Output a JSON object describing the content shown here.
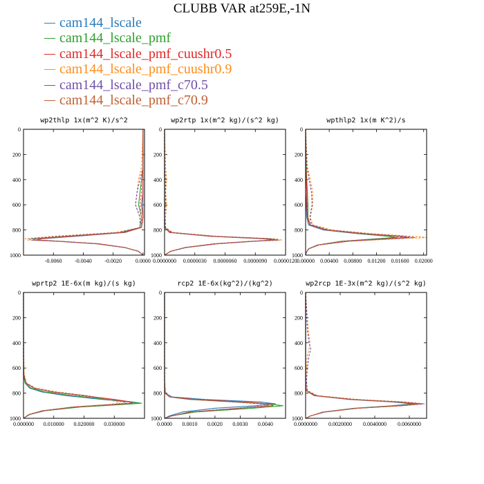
{
  "title": "CLUBB VAR at259E,-1N",
  "legend": [
    {
      "label": "cam144_lscale",
      "color": "#2a7ab8"
    },
    {
      "label": "cam144_lscale_pmf",
      "color": "#2ca02c"
    },
    {
      "label": "cam144_lscale_pmf_cuushr0.5",
      "color": "#e32626"
    },
    {
      "label": "cam144_lscale_pmf_cuushr0.9",
      "color": "#ff8c1a"
    },
    {
      "label": "cam144_lscale_pmf_c70.5",
      "color": "#7050a8"
    },
    {
      "label": "cam144_lscale_pmf_c70.9",
      "color": "#bf5f33"
    }
  ],
  "chart_data": [
    {
      "type": "line",
      "title": "wp2thlp  1x(m^2 K)/s^2",
      "xlim": [
        -0.008,
        0.0001
      ],
      "xticks": [
        "-0.0060",
        "-0.0040",
        "-0.0020",
        "0.0000"
      ],
      "xtick_values": [
        -0.006,
        -0.004,
        -0.002,
        0.0
      ],
      "ylim": [
        1000,
        0
      ],
      "yticks": [
        "0",
        "200",
        "400",
        "600",
        "800",
        "1000"
      ],
      "y": [
        0,
        300,
        400,
        500,
        600,
        700,
        780,
        820,
        850,
        870,
        880,
        890,
        910,
        940,
        970,
        1000
      ],
      "series": [
        {
          "name": "cam144_lscale",
          "values": [
            0,
            0,
            0,
            0,
            0,
            0,
            -0.0001,
            -0.0012,
            -0.0045,
            -0.0068,
            -0.007,
            -0.0055,
            -0.003,
            -0.0012,
            -0.0003,
            0
          ]
        },
        {
          "name": "cam144_lscale_pmf",
          "values": [
            0,
            0,
            -0.0001,
            -0.0002,
            -0.0003,
            -0.0001,
            -0.0002,
            -0.0015,
            -0.005,
            -0.0074,
            -0.0072,
            -0.0055,
            -0.003,
            -0.0012,
            -0.0003,
            0
          ]
        },
        {
          "name": "cam144_lscale_pmf_cuushr0.5",
          "values": [
            0,
            0,
            0,
            0,
            -0.0001,
            0,
            -0.0001,
            -0.0013,
            -0.0048,
            -0.007,
            -0.0071,
            -0.0056,
            -0.003,
            -0.0012,
            -0.0003,
            0
          ]
        },
        {
          "name": "cam144_lscale_pmf_cuushr0.9",
          "values": [
            0,
            -0.0001,
            -0.0003,
            -0.0004,
            -0.0005,
            -0.0002,
            -0.0002,
            -0.0018,
            -0.006,
            -0.0079,
            -0.0077,
            -0.0058,
            -0.0032,
            -0.0012,
            -0.0003,
            0
          ]
        },
        {
          "name": "cam144_lscale_pmf_c70.5",
          "values": [
            0,
            0,
            -0.0002,
            -0.0004,
            -0.0005,
            -0.0002,
            -0.0002,
            -0.0016,
            -0.0055,
            -0.0076,
            -0.0075,
            -0.0057,
            -0.0031,
            -0.0012,
            -0.0003,
            0
          ]
        },
        {
          "name": "cam144_lscale_pmf_c70.9",
          "values": [
            0,
            0,
            -0.0001,
            -0.0001,
            -0.0002,
            -0.0001,
            -0.0001,
            -0.0014,
            -0.005,
            -0.0072,
            -0.0073,
            -0.0056,
            -0.003,
            -0.0012,
            -0.0003,
            0
          ]
        }
      ]
    },
    {
      "type": "line",
      "title": "wp2rtp  1x(m^2 kg)/(s^2 kg)",
      "xlim": [
        0,
        1.2e-05
      ],
      "xticks": [
        "0.0000000",
        "0.0000030",
        "0.0000060",
        "0.0000090",
        "0.0000120"
      ],
      "xtick_values": [
        0,
        3e-06,
        6e-06,
        9e-06,
        1.2e-05
      ],
      "ylim": [
        1000,
        0
      ],
      "yticks": [
        "0",
        "200",
        "400",
        "600",
        "800",
        "1000"
      ],
      "y": [
        0,
        300,
        400,
        500,
        600,
        700,
        780,
        820,
        850,
        870,
        880,
        890,
        910,
        940,
        970,
        1000
      ],
      "series": [
        {
          "name": "cam144_lscale",
          "values": [
            0,
            0,
            0,
            0,
            0,
            0,
            0,
            5e-07,
            4.5e-06,
            9.8e-06,
            1.08e-05,
            8.5e-06,
            5e-06,
            2e-06,
            6e-07,
            0
          ]
        },
        {
          "name": "cam144_lscale_pmf",
          "values": [
            0,
            0,
            0,
            0,
            0,
            0,
            0,
            6e-07,
            4.8e-06,
            1.04e-05,
            1.12e-05,
            8.8e-06,
            5.2e-06,
            2.1e-06,
            6e-07,
            0
          ]
        },
        {
          "name": "cam144_lscale_pmf_cuushr0.5",
          "values": [
            0,
            0,
            0,
            0,
            0,
            0,
            0,
            5e-07,
            4.6e-06,
            1e-05,
            1.09e-05,
            8.6e-06,
            5e-06,
            2e-06,
            6e-07,
            0
          ]
        },
        {
          "name": "cam144_lscale_pmf_cuushr0.9",
          "values": [
            0,
            1e-07,
            2e-07,
            1e-07,
            2e-07,
            1e-07,
            1e-07,
            8e-07,
            5.2e-06,
            1.1e-05,
            1.16e-05,
            9e-06,
            5.3e-06,
            2.1e-06,
            6e-07,
            0
          ]
        },
        {
          "name": "cam144_lscale_pmf_c70.5",
          "values": [
            0,
            0,
            1e-07,
            1e-07,
            1e-07,
            0,
            1e-07,
            7e-07,
            5e-06,
            1.06e-05,
            1.13e-05,
            8.8e-06,
            5.2e-06,
            2.1e-06,
            6e-07,
            0
          ]
        },
        {
          "name": "cam144_lscale_pmf_c70.9",
          "values": [
            0,
            0,
            0,
            0,
            0,
            0,
            0,
            6e-07,
            4.7e-06,
            1.01e-05,
            1.1e-05,
            8.7e-06,
            5.1e-06,
            2e-06,
            6e-07,
            0
          ]
        }
      ]
    },
    {
      "type": "line",
      "title": "wpthlp2  1x(m K^2)/s",
      "xlim": [
        0,
        0.0205
      ],
      "xticks": [
        "0.00000",
        "0.00400",
        "0.00800",
        "0.01200",
        "0.01600",
        "0.02000"
      ],
      "xtick_values": [
        0,
        0.004,
        0.008,
        0.012,
        0.016,
        0.02
      ],
      "ylim": [
        1000,
        0
      ],
      "yticks": [
        "0",
        "200",
        "400",
        "600",
        "800",
        "1000"
      ],
      "y": [
        0,
        300,
        400,
        500,
        600,
        700,
        760,
        800,
        830,
        850,
        860,
        870,
        890,
        920,
        950,
        980,
        1000
      ],
      "series": [
        {
          "name": "cam144_lscale",
          "values": [
            0,
            0,
            0,
            0,
            0.0001,
            0.0002,
            0.0005,
            0.003,
            0.009,
            0.014,
            0.015,
            0.012,
            0.006,
            0.002,
            0.0005,
            0.0001,
            0
          ]
        },
        {
          "name": "cam144_lscale_pmf",
          "values": [
            0,
            0.0001,
            0.0002,
            0.0003,
            0.0004,
            0.0004,
            0.0008,
            0.0036,
            0.0095,
            0.014,
            0.0155,
            0.0125,
            0.006,
            0.002,
            0.0005,
            0.0001,
            0
          ]
        },
        {
          "name": "cam144_lscale_pmf_cuushr0.5",
          "values": [
            0,
            0,
            0.0001,
            0.0002,
            0.0002,
            0.0003,
            0.0007,
            0.0035,
            0.01,
            0.016,
            0.0175,
            0.0135,
            0.0065,
            0.0021,
            0.0005,
            0.0001,
            0
          ]
        },
        {
          "name": "cam144_lscale_pmf_cuushr0.9",
          "values": [
            0,
            0.0003,
            0.0008,
            0.0012,
            0.0012,
            0.0008,
            0.0012,
            0.0045,
            0.0115,
            0.018,
            0.0205,
            0.016,
            0.0075,
            0.0023,
            0.0006,
            0.0001,
            0
          ]
        },
        {
          "name": "cam144_lscale_pmf_c70.5",
          "values": [
            0,
            0.0002,
            0.0006,
            0.001,
            0.0011,
            0.0007,
            0.001,
            0.004,
            0.0105,
            0.0165,
            0.0185,
            0.0145,
            0.007,
            0.0022,
            0.0005,
            0.0001,
            0
          ]
        },
        {
          "name": "cam144_lscale_pmf_c70.9",
          "values": [
            0,
            0.0001,
            0.0002,
            0.0003,
            0.0003,
            0.0004,
            0.0008,
            0.0036,
            0.0098,
            0.015,
            0.0168,
            0.013,
            0.0062,
            0.002,
            0.0005,
            0.0001,
            0
          ]
        }
      ]
    },
    {
      "type": "line",
      "title": "wprtp2  1E-6x(m kg)/(s kg)",
      "xlim": [
        0,
        0.04
      ],
      "xticks": [
        "0.000000",
        "0.010000",
        "0.020000",
        "0.030000"
      ],
      "xtick_values": [
        0,
        0.01,
        0.02,
        0.03
      ],
      "ylim": [
        1000,
        0
      ],
      "yticks": [
        "0",
        "200",
        "400",
        "600",
        "800",
        "1000"
      ],
      "y": [
        0,
        300,
        500,
        650,
        720,
        760,
        790,
        820,
        850,
        870,
        880,
        890,
        910,
        940,
        970,
        1000
      ],
      "series": [
        {
          "name": "cam144_lscale",
          "values": [
            0,
            0,
            0,
            0,
            0.0005,
            0.002,
            0.006,
            0.014,
            0.026,
            0.035,
            0.038,
            0.032,
            0.018,
            0.007,
            0.002,
            0
          ]
        },
        {
          "name": "cam144_lscale_pmf",
          "values": [
            0,
            0,
            0,
            0,
            0.0006,
            0.0025,
            0.007,
            0.016,
            0.028,
            0.036,
            0.039,
            0.033,
            0.019,
            0.007,
            0.002,
            0
          ]
        },
        {
          "name": "cam144_lscale_pmf_cuushr0.5",
          "values": [
            0,
            0,
            0,
            0.0001,
            0.0008,
            0.0035,
            0.0095,
            0.02,
            0.03,
            0.0355,
            0.036,
            0.03,
            0.017,
            0.0065,
            0.0018,
            0
          ]
        },
        {
          "name": "cam144_lscale_pmf_cuushr0.9",
          "values": [
            0,
            0,
            0.0001,
            0.0002,
            0.001,
            0.004,
            0.011,
            0.021,
            0.028,
            0.031,
            0.032,
            0.028,
            0.016,
            0.006,
            0.0017,
            0
          ]
        },
        {
          "name": "cam144_lscale_pmf_c70.5",
          "values": [
            0,
            0,
            0.0001,
            0.0001,
            0.0009,
            0.0037,
            0.01,
            0.0205,
            0.029,
            0.033,
            0.034,
            0.029,
            0.0165,
            0.0062,
            0.0018,
            0
          ]
        },
        {
          "name": "cam144_lscale_pmf_c70.9",
          "values": [
            0,
            0,
            0,
            0.0001,
            0.0008,
            0.0033,
            0.009,
            0.019,
            0.029,
            0.0345,
            0.0355,
            0.0298,
            0.017,
            0.0064,
            0.0018,
            0
          ]
        }
      ]
    },
    {
      "type": "line",
      "title": "rcp2  1E-6x(kg^2)/(kg^2)",
      "xlim": [
        0,
        0.0048
      ],
      "xticks": [
        "0.0000",
        "0.0010",
        "0.0020",
        "0.0030",
        "0.0040"
      ],
      "xtick_values": [
        0,
        0.001,
        0.002,
        0.003,
        0.004
      ],
      "ylim": [
        1000,
        0
      ],
      "yticks": [
        "0",
        "200",
        "400",
        "600",
        "800",
        "1000"
      ],
      "y": [
        0,
        700,
        800,
        830,
        850,
        870,
        885,
        900,
        920,
        950,
        980,
        1000
      ],
      "series": [
        {
          "name": "cam144_lscale",
          "values": [
            0,
            0,
            3e-05,
            0.0003,
            0.0016,
            0.0038,
            0.0044,
            0.0036,
            0.002,
            0.0007,
            0.0002,
            0
          ]
        },
        {
          "name": "cam144_lscale_pmf",
          "values": [
            0,
            0,
            2e-05,
            0.0002,
            0.001,
            0.0028,
            0.0041,
            0.0047,
            0.0035,
            0.0012,
            0.0003,
            0
          ]
        },
        {
          "name": "cam144_lscale_pmf_cuushr0.5",
          "values": [
            0,
            0,
            2e-05,
            0.0002,
            0.0012,
            0.0031,
            0.0042,
            0.0043,
            0.003,
            0.001,
            0.0003,
            0
          ]
        },
        {
          "name": "cam144_lscale_pmf_cuushr0.9",
          "values": [
            0,
            0,
            2e-05,
            0.0002,
            0.0011,
            0.0029,
            0.004,
            0.0042,
            0.0029,
            0.001,
            0.0003,
            0
          ]
        },
        {
          "name": "cam144_lscale_pmf_c70.5",
          "values": [
            0,
            0,
            2e-05,
            0.0002,
            0.001,
            0.0027,
            0.0038,
            0.0041,
            0.0029,
            0.001,
            0.0003,
            0
          ]
        },
        {
          "name": "cam144_lscale_pmf_c70.9",
          "values": [
            0,
            0,
            2e-05,
            0.0002,
            0.0011,
            0.003,
            0.004,
            0.0042,
            0.003,
            0.001,
            0.0003,
            0
          ]
        }
      ]
    },
    {
      "type": "line",
      "title": "wp2rcp  1E-3x(m^2 kg)/(s^2 kg)",
      "xlim": [
        0,
        0.007
      ],
      "xticks": [
        "0.0000000",
        "0.0020000",
        "0.0040000",
        "0.0060000"
      ],
      "xtick_values": [
        0,
        0.002,
        0.004,
        0.006
      ],
      "ylim": [
        1000,
        0
      ],
      "yticks": [
        "0",
        "200",
        "400",
        "600",
        "800",
        "1000"
      ],
      "y": [
        0,
        300,
        400,
        450,
        500,
        600,
        700,
        780,
        820,
        850,
        870,
        885,
        900,
        920,
        950,
        980,
        1000
      ],
      "series": [
        {
          "name": "cam144_lscale",
          "values": [
            0,
            0,
            0,
            0,
            0,
            0,
            0,
            3e-05,
            0.0005,
            0.0025,
            0.005,
            0.0062,
            0.005,
            0.0028,
            0.001,
            0.0003,
            0
          ]
        },
        {
          "name": "cam144_lscale_pmf",
          "values": [
            0,
            0,
            0,
            0,
            0,
            0,
            0,
            3e-05,
            0.0006,
            0.0027,
            0.0052,
            0.0065,
            0.0053,
            0.003,
            0.0011,
            0.0003,
            0
          ]
        },
        {
          "name": "cam144_lscale_pmf_cuushr0.5",
          "values": [
            0,
            0,
            0,
            0,
            0,
            0,
            0,
            3e-05,
            0.0005,
            0.0026,
            0.0053,
            0.0067,
            0.0055,
            0.003,
            0.0011,
            0.0003,
            0
          ]
        },
        {
          "name": "cam144_lscale_pmf_cuushr0.9",
          "values": [
            0,
            0.00015,
            0.00025,
            0.0002,
            0.0001,
            5e-05,
            5e-05,
            0.0001,
            0.0007,
            0.003,
            0.0058,
            0.0069,
            0.0056,
            0.003,
            0.0011,
            0.0003,
            0
          ]
        },
        {
          "name": "cam144_lscale_pmf_c70.5",
          "values": [
            0,
            0.0001,
            0.0002,
            0.0003,
            0.0002,
            0.0001,
            5e-05,
            0.0001,
            0.0006,
            0.0028,
            0.0055,
            0.0068,
            0.0055,
            0.003,
            0.0011,
            0.0003,
            0
          ]
        },
        {
          "name": "cam144_lscale_pmf_c70.9",
          "values": [
            0,
            0,
            0,
            0,
            0,
            0,
            0,
            3e-05,
            0.0005,
            0.0026,
            0.0052,
            0.0066,
            0.0054,
            0.003,
            0.0011,
            0.0003,
            0
          ]
        }
      ]
    }
  ]
}
